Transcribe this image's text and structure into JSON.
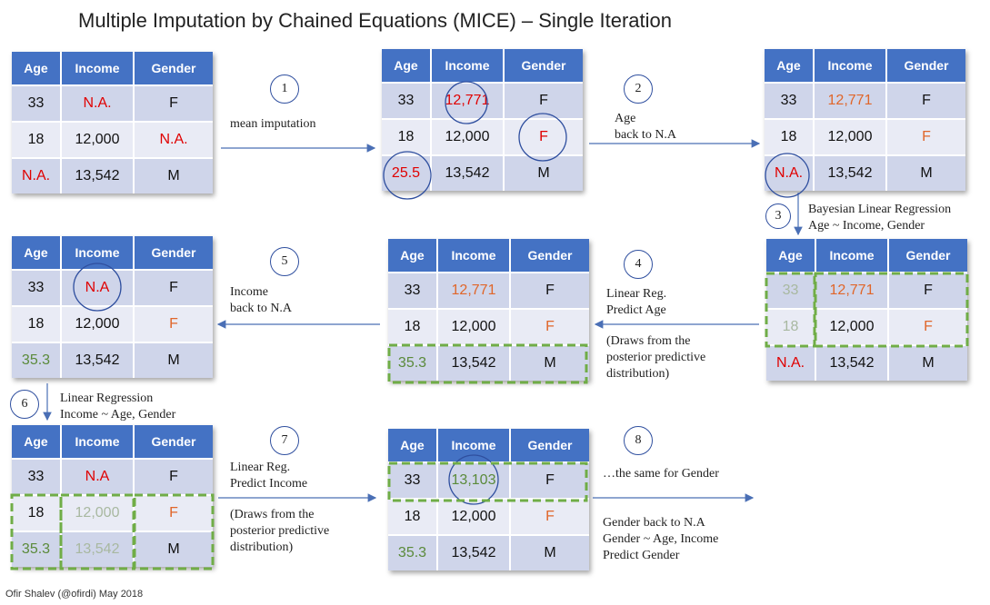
{
  "title": "Multiple Imputation by Chained Equations (MICE) – Single Iteration",
  "credit": "Ofir Shalev (@ofirdi) May 2018",
  "headers": [
    "Age",
    "Income",
    "Gender"
  ],
  "tables": [
    {
      "rows": [
        [
          "33",
          "N.A.",
          "F"
        ],
        [
          "18",
          "12,000",
          "N.A."
        ],
        [
          "N.A.",
          "13,542",
          "M"
        ]
      ]
    },
    {
      "rows": [
        [
          "33",
          "12,771",
          "F"
        ],
        [
          "18",
          "12,000",
          "F"
        ],
        [
          "25.5",
          "13,542",
          "M"
        ]
      ]
    },
    {
      "rows": [
        [
          "33",
          "12,771",
          "F"
        ],
        [
          "18",
          "12,000",
          "F"
        ],
        [
          "N.A.",
          "13,542",
          "M"
        ]
      ]
    },
    {
      "rows": [
        [
          "33",
          "12,771",
          "F"
        ],
        [
          "18",
          "12,000",
          "F"
        ],
        [
          "N.A.",
          "13,542",
          "M"
        ]
      ]
    },
    {
      "rows": [
        [
          "33",
          "12,771",
          "F"
        ],
        [
          "18",
          "12,000",
          "F"
        ],
        [
          "35.3",
          "13,542",
          "M"
        ]
      ]
    },
    {
      "rows": [
        [
          "33",
          "N.A",
          "F"
        ],
        [
          "18",
          "12,000",
          "F"
        ],
        [
          "35.3",
          "13,542",
          "M"
        ]
      ]
    },
    {
      "rows": [
        [
          "33",
          "N.A",
          "F"
        ],
        [
          "18",
          "12,000",
          "F"
        ],
        [
          "35.3",
          "13,542",
          "M"
        ]
      ]
    },
    {
      "rows": [
        [
          "33",
          "13,103",
          "F"
        ],
        [
          "18",
          "12,000",
          "F"
        ],
        [
          "35.3",
          "13,542",
          "M"
        ]
      ]
    }
  ],
  "steps": [
    {
      "num": "1",
      "lines": [
        "mean imputation"
      ]
    },
    {
      "num": "2",
      "lines": [
        "Age",
        "back to N.A"
      ]
    },
    {
      "num": "3",
      "lines": [
        "Bayesian Linear Regression",
        "Age ~ Income, Gender"
      ]
    },
    {
      "num": "4",
      "lines": [
        "Linear Reg.",
        "Predict Age",
        "",
        "(Draws from the",
        "posterior predictive",
        "distribution)"
      ]
    },
    {
      "num": "5",
      "lines": [
        "Income",
        "back to N.A"
      ]
    },
    {
      "num": "6",
      "lines": [
        "Linear Regression",
        "Income ~ Age, Gender"
      ]
    },
    {
      "num": "7",
      "lines": [
        "Linear Reg.",
        "Predict Income",
        "",
        "(Draws from the",
        "posterior predictive",
        "distribution)"
      ]
    },
    {
      "num": "8",
      "lines": [
        "…the same for Gender",
        "",
        "",
        "Gender back to N.A",
        "Gender ~ Age, Income",
        "Predict Gender"
      ]
    }
  ],
  "colors": {
    "header": "#4472c4",
    "missing": "#e00000",
    "imputed": "#e0662a",
    "predicted": "#5a8a3a",
    "highlight": "#70ad47",
    "circle": "#2f4f9f"
  }
}
